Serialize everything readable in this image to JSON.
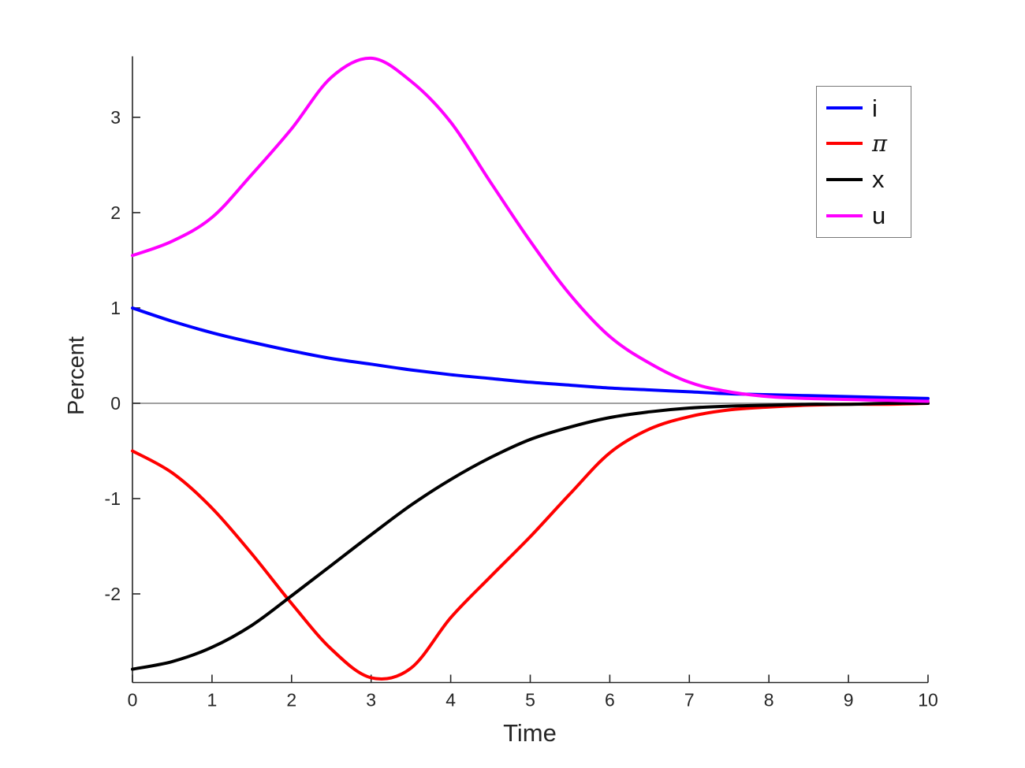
{
  "figure": {
    "background": "#ffffff",
    "tick_color": "#262626",
    "axis_line_color": "#262626",
    "zero_line_color": "#808080"
  },
  "chart_data": {
    "type": "line",
    "title": "",
    "xlabel": "Time",
    "ylabel": "Percent",
    "xlim": [
      0,
      10
    ],
    "ylim": [
      -2.93,
      3.64
    ],
    "x_ticks": [
      0,
      1,
      2,
      3,
      4,
      5,
      6,
      7,
      8,
      9,
      10
    ],
    "y_ticks": [
      -2,
      -1,
      0,
      1,
      2,
      3
    ],
    "grid": false,
    "zero_line": true,
    "legend_position": "upper right",
    "x": [
      0,
      0.5,
      1,
      1.5,
      2,
      2.5,
      3,
      3.5,
      4,
      4.5,
      5,
      5.5,
      6,
      6.5,
      7,
      7.5,
      8,
      8.5,
      9,
      9.5,
      10
    ],
    "series": [
      {
        "name": "i",
        "color": "#0000FF",
        "values": [
          1.0,
          0.86,
          0.74,
          0.64,
          0.55,
          0.47,
          0.41,
          0.35,
          0.3,
          0.26,
          0.22,
          0.19,
          0.16,
          0.14,
          0.12,
          0.1,
          0.09,
          0.08,
          0.07,
          0.06,
          0.05
        ]
      },
      {
        "name": "π",
        "color": "#FF0000",
        "values": [
          -0.5,
          -0.73,
          -1.1,
          -1.58,
          -2.1,
          -2.58,
          -2.88,
          -2.78,
          -2.25,
          -1.82,
          -1.4,
          -0.95,
          -0.52,
          -0.27,
          -0.14,
          -0.07,
          -0.04,
          -0.02,
          -0.01,
          -0.01,
          0.0
        ]
      },
      {
        "name": "x",
        "color": "#000000",
        "values": [
          -2.79,
          -2.71,
          -2.56,
          -2.33,
          -2.02,
          -1.7,
          -1.38,
          -1.07,
          -0.8,
          -0.57,
          -0.38,
          -0.25,
          -0.15,
          -0.09,
          -0.05,
          -0.03,
          -0.02,
          -0.01,
          -0.01,
          0.0,
          0.0
        ]
      },
      {
        "name": "u",
        "color": "#FF00FF",
        "values": [
          1.55,
          1.7,
          1.95,
          2.4,
          2.88,
          3.42,
          3.62,
          3.38,
          2.95,
          2.32,
          1.7,
          1.14,
          0.7,
          0.42,
          0.22,
          0.12,
          0.07,
          0.05,
          0.04,
          0.03,
          0.02
        ]
      }
    ]
  }
}
